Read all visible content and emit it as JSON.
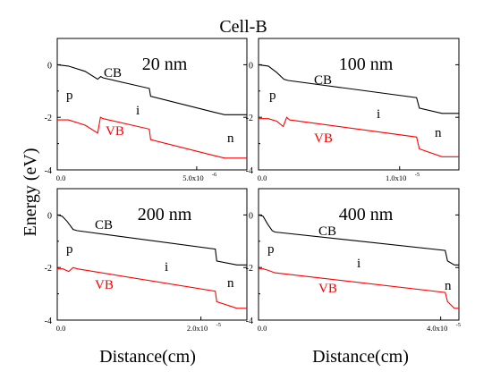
{
  "figure": {
    "title": "Cell-B",
    "ylabel": "Energy (eV)",
    "xlabel": "Distance(cm)"
  },
  "chart_data": [
    {
      "type": "line",
      "annotation": "20 nm",
      "x_tick_labels": [
        "0.0",
        "5.0x10",
        "-6"
      ],
      "xlim": [
        0,
        6.8e-06
      ],
      "ylim": [
        -4,
        1
      ],
      "y_ticks": [
        0,
        -2,
        -4
      ],
      "region_labels": {
        "p": "p",
        "i": "i",
        "n": "n"
      },
      "series": [
        {
          "name": "CB",
          "color": "#000000",
          "x": [
            0,
            4e-07,
            1e-06,
            1.45e-06,
            1.56e-06,
            1.65e-06,
            3.3e-06,
            3.35e-06,
            5.6e-06,
            6e-06,
            6.8e-06
          ],
          "y": [
            0.0,
            -0.05,
            -0.25,
            -0.55,
            -0.45,
            -0.5,
            -0.9,
            -1.2,
            -1.8,
            -1.9,
            -1.9
          ]
        },
        {
          "name": "VB",
          "color": "#ff0000",
          "x": [
            0,
            4e-07,
            1e-06,
            1.45e-06,
            1.55e-06,
            1.65e-06,
            3.3e-06,
            3.35e-06,
            5.6e-06,
            6e-06,
            6.8e-06
          ],
          "y": [
            -2.1,
            -2.1,
            -2.3,
            -2.6,
            -2.0,
            -2.05,
            -2.45,
            -2.85,
            -3.45,
            -3.55,
            -3.55
          ]
        }
      ]
    },
    {
      "type": "line",
      "annotation": "100 nm",
      "x_tick_labels": [
        "0.0",
        "1.0x10",
        "-5"
      ],
      "xlim": [
        0,
        1.42e-05
      ],
      "ylim": [
        -4,
        1
      ],
      "y_ticks": [
        0,
        -2,
        -4
      ],
      "region_labels": {
        "p": "p",
        "i": "i",
        "n": "n"
      },
      "series": [
        {
          "name": "CB",
          "color": "#000000",
          "x": [
            0,
            7e-07,
            1.3e-06,
            1.8e-06,
            2.1e-06,
            1.12e-05,
            1.14e-05,
            1.3e-05,
            1.42e-05
          ],
          "y": [
            0.0,
            -0.05,
            -0.3,
            -0.55,
            -0.6,
            -1.25,
            -1.65,
            -1.85,
            -1.85
          ]
        },
        {
          "name": "VB",
          "color": "#ff0000",
          "x": [
            0,
            7e-07,
            1.3e-06,
            1.75e-06,
            2e-06,
            2.2e-06,
            1.12e-05,
            1.14e-05,
            1.3e-05,
            1.42e-05
          ],
          "y": [
            -2.05,
            -2.05,
            -2.15,
            -2.35,
            -2.0,
            -2.1,
            -2.75,
            -3.2,
            -3.5,
            -3.5
          ]
        }
      ]
    },
    {
      "type": "line",
      "annotation": "200 nm",
      "x_tick_labels": [
        "0.0",
        "2.0x10",
        "-5"
      ],
      "xlim": [
        0,
        2.64e-05
      ],
      "ylim": [
        -4,
        1
      ],
      "y_ticks": [
        0,
        -2,
        -4
      ],
      "region_labels": {
        "p": "p",
        "i": "i",
        "n": "n"
      },
      "series": [
        {
          "name": "CB",
          "color": "#000000",
          "x": [
            0,
            7e-07,
            1.4e-06,
            2.2e-06,
            2.8e-06,
            2.2e-05,
            2.22e-05,
            2.5e-05,
            2.64e-05
          ],
          "y": [
            0.0,
            -0.05,
            -0.25,
            -0.55,
            -0.6,
            -1.3,
            -1.75,
            -1.9,
            -1.9
          ]
        },
        {
          "name": "VB",
          "color": "#ff0000",
          "x": [
            0,
            8e-07,
            1.6e-06,
            2.2e-06,
            2.8e-06,
            2.2e-05,
            2.22e-05,
            2.5e-05,
            2.64e-05
          ],
          "y": [
            -2.05,
            -2.05,
            -2.15,
            -2.0,
            -2.05,
            -2.9,
            -3.3,
            -3.55,
            -3.55
          ]
        }
      ]
    },
    {
      "type": "line",
      "annotation": "400 nm",
      "x_tick_labels": [
        "0.0",
        "4.0x10",
        "-5"
      ],
      "xlim": [
        0,
        4.4e-05
      ],
      "ylim": [
        -4,
        1
      ],
      "y_ticks": [
        0,
        -2,
        -4
      ],
      "region_labels": {
        "p": "p",
        "i": "i",
        "n": "n"
      },
      "series": [
        {
          "name": "CB",
          "color": "#000000",
          "x": [
            0,
            1e-06,
            2e-06,
            3e-06,
            3.6e-06,
            4.1e-05,
            4.15e-05,
            4.3e-05,
            4.4e-05
          ],
          "y": [
            0.0,
            -0.05,
            -0.35,
            -0.6,
            -0.65,
            -1.35,
            -1.75,
            -1.9,
            -1.9
          ]
        },
        {
          "name": "VB",
          "color": "#ff0000",
          "x": [
            0,
            1e-06,
            2e-06,
            3.6e-06,
            4.1e-05,
            4.15e-05,
            4.3e-05,
            4.4e-05
          ],
          "y": [
            -2.05,
            -2.05,
            -2.1,
            -2.2,
            -2.95,
            -3.3,
            -3.55,
            -3.55
          ]
        }
      ]
    }
  ]
}
